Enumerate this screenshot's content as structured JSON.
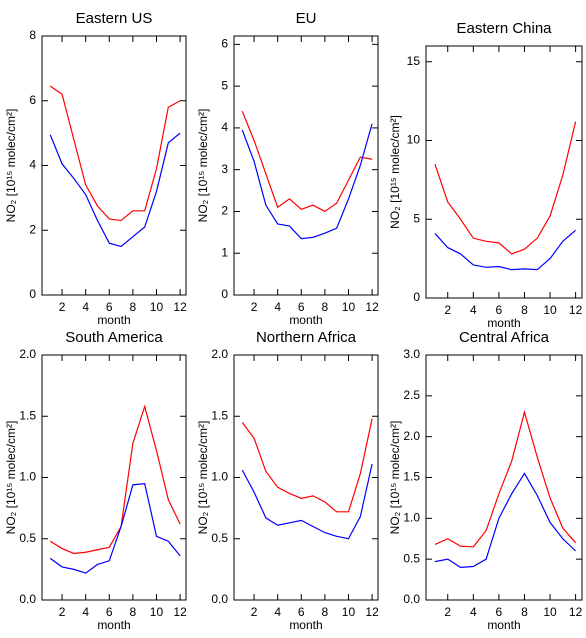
{
  "chart_data": [
    {
      "type": "line",
      "title": "Eastern US",
      "xlabel": "month",
      "ylabel": "NO₂ [10¹⁵ molec/cm²]",
      "x": [
        1,
        2,
        3,
        4,
        5,
        6,
        7,
        8,
        9,
        10,
        11,
        12
      ],
      "xlim": [
        0.3,
        12.5
      ],
      "xticks": [
        2,
        4,
        6,
        8,
        10,
        12
      ],
      "ylim": [
        0,
        8
      ],
      "yticks": [
        0,
        2,
        4,
        6,
        8
      ],
      "series": [
        {
          "color": "#ff0000",
          "values": [
            6.45,
            6.2,
            4.8,
            3.4,
            2.75,
            2.35,
            2.3,
            2.6,
            2.6,
            3.9,
            5.8,
            6.0
          ]
        },
        {
          "color": "#0000ff",
          "values": [
            4.95,
            4.05,
            3.6,
            3.1,
            2.3,
            1.6,
            1.5,
            1.8,
            2.1,
            3.2,
            4.7,
            5.0
          ]
        }
      ]
    },
    {
      "type": "line",
      "title": "EU",
      "xlabel": "month",
      "ylabel": "NO₂ [10¹⁵ molec/cm²]",
      "x": [
        1,
        2,
        3,
        4,
        5,
        6,
        7,
        8,
        9,
        10,
        11,
        12
      ],
      "xlim": [
        0.3,
        12.5
      ],
      "xticks": [
        2,
        4,
        6,
        8,
        10,
        12
      ],
      "ylim": [
        0,
        6.2
      ],
      "yticks": [
        0,
        1,
        2,
        3,
        4,
        5,
        6
      ],
      "series": [
        {
          "color": "#ff0000",
          "values": [
            4.4,
            3.7,
            2.9,
            2.1,
            2.3,
            2.05,
            2.15,
            2.0,
            2.2,
            2.75,
            3.3,
            3.25
          ]
        },
        {
          "color": "#0000ff",
          "values": [
            3.95,
            3.2,
            2.15,
            1.7,
            1.65,
            1.35,
            1.38,
            1.48,
            1.6,
            2.3,
            3.1,
            4.1
          ]
        }
      ]
    },
    {
      "type": "line",
      "title": "Eastern China",
      "xlabel": "month",
      "ylabel": "NO₂ [10¹⁵ molec/cm²]",
      "x": [
        1,
        2,
        3,
        4,
        5,
        6,
        7,
        8,
        9,
        10,
        11,
        12
      ],
      "xlim": [
        0.3,
        12.5
      ],
      "xticks": [
        2,
        4,
        6,
        8,
        10,
        12
      ],
      "ylim": [
        0,
        16
      ],
      "yticks": [
        0,
        5,
        10,
        15
      ],
      "series": [
        {
          "color": "#ff0000",
          "values": [
            8.5,
            6.1,
            5.0,
            3.8,
            3.6,
            3.5,
            2.8,
            3.1,
            3.8,
            5.2,
            7.8,
            11.2
          ]
        },
        {
          "color": "#0000ff",
          "values": [
            4.1,
            3.2,
            2.8,
            2.1,
            1.95,
            2.0,
            1.8,
            1.85,
            1.8,
            2.5,
            3.6,
            4.3
          ]
        }
      ]
    },
    {
      "type": "line",
      "title": "South America",
      "xlabel": "month",
      "ylabel": "NO₂ [10¹⁵ molec/cm²]",
      "x": [
        1,
        2,
        3,
        4,
        5,
        6,
        7,
        8,
        9,
        10,
        11,
        12
      ],
      "xlim": [
        0.3,
        12.5
      ],
      "xticks": [
        2,
        4,
        6,
        8,
        10,
        12
      ],
      "ylim": [
        0,
        2
      ],
      "yticks": [
        {
          "value": 0,
          "label": "0.0"
        },
        {
          "value": 0.5,
          "label": "0.5"
        },
        {
          "value": 1,
          "label": "1.0"
        },
        {
          "value": 1.5,
          "label": "1.5"
        },
        {
          "value": 2,
          "label": "2.0"
        }
      ],
      "series": [
        {
          "color": "#ff0000",
          "values": [
            0.48,
            0.42,
            0.38,
            0.39,
            0.41,
            0.43,
            0.6,
            1.28,
            1.58,
            1.22,
            0.82,
            0.62
          ]
        },
        {
          "color": "#0000ff",
          "values": [
            0.34,
            0.27,
            0.25,
            0.22,
            0.29,
            0.32,
            0.6,
            0.94,
            0.95,
            0.52,
            0.48,
            0.36
          ]
        }
      ]
    },
    {
      "type": "line",
      "title": "Northern Africa",
      "xlabel": "month",
      "ylabel": "NO₂ [10¹⁵ molec/cm²]",
      "x": [
        1,
        2,
        3,
        4,
        5,
        6,
        7,
        8,
        9,
        10,
        11,
        12
      ],
      "xlim": [
        0.3,
        12.5
      ],
      "xticks": [
        2,
        4,
        6,
        8,
        10,
        12
      ],
      "ylim": [
        0,
        2
      ],
      "yticks": [
        {
          "value": 0,
          "label": "0.0"
        },
        {
          "value": 0.5,
          "label": "0.5"
        },
        {
          "value": 1,
          "label": "1.0"
        },
        {
          "value": 1.5,
          "label": "1.5"
        },
        {
          "value": 2,
          "label": "2.0"
        }
      ],
      "series": [
        {
          "color": "#ff0000",
          "values": [
            1.45,
            1.32,
            1.05,
            0.92,
            0.87,
            0.83,
            0.85,
            0.8,
            0.72,
            0.72,
            1.03,
            1.48
          ]
        },
        {
          "color": "#0000ff",
          "values": [
            1.06,
            0.88,
            0.67,
            0.61,
            0.63,
            0.65,
            0.6,
            0.55,
            0.52,
            0.5,
            0.68,
            1.11
          ]
        }
      ]
    },
    {
      "type": "line",
      "title": "Central Africa",
      "xlabel": "month",
      "ylabel": "NO₂ [10¹⁵ molec/cm²]",
      "x": [
        1,
        2,
        3,
        4,
        5,
        6,
        7,
        8,
        9,
        10,
        11,
        12
      ],
      "xlim": [
        0.3,
        12.5
      ],
      "xticks": [
        2,
        4,
        6,
        8,
        10,
        12
      ],
      "ylim": [
        0,
        3
      ],
      "yticks": [
        {
          "value": 0,
          "label": "0.0"
        },
        {
          "value": 0.5,
          "label": "0.5"
        },
        {
          "value": 1,
          "label": "1.0"
        },
        {
          "value": 1.5,
          "label": "1.5"
        },
        {
          "value": 2,
          "label": "2.0"
        },
        {
          "value": 2.5,
          "label": "2.5"
        },
        {
          "value": 3,
          "label": "3.0"
        }
      ],
      "series": [
        {
          "color": "#ff0000",
          "values": [
            0.68,
            0.75,
            0.66,
            0.65,
            0.85,
            1.3,
            1.7,
            2.3,
            1.75,
            1.25,
            0.88,
            0.7
          ]
        },
        {
          "color": "#0000ff",
          "values": [
            0.47,
            0.5,
            0.4,
            0.41,
            0.5,
            1.0,
            1.3,
            1.55,
            1.28,
            0.95,
            0.75,
            0.6
          ]
        }
      ]
    }
  ]
}
